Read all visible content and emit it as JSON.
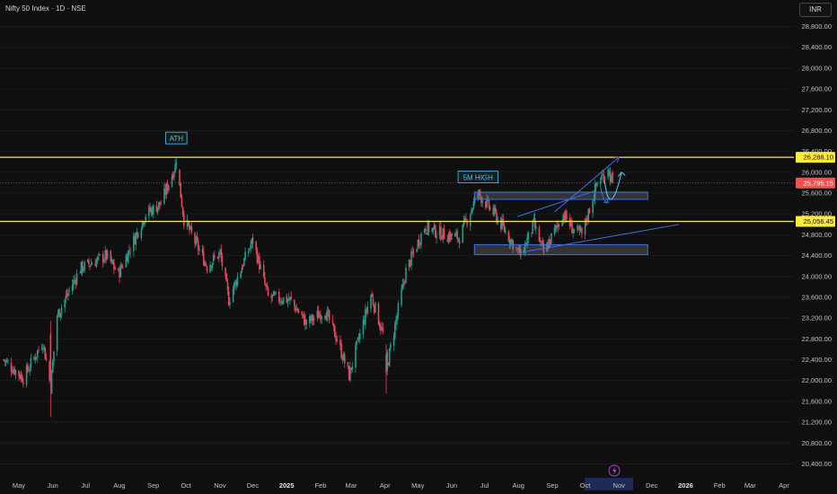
{
  "header": {
    "title": "Nifty 50 Index · 1D · NSE",
    "currency": "INR"
  },
  "colors": {
    "background": "#0f0f0f",
    "up_candle": "#1f9e8c",
    "down_candle": "#e8455a",
    "key_level": "#ffeb3b",
    "last_price": "#ef5350",
    "drawing": "#3f6fe0",
    "annotation_text": "#4fc3f7"
  },
  "chart_data": {
    "type": "candlestick",
    "title": "Nifty 50 Index · 1D · NSE",
    "y_axis": {
      "ticks": [
        20400,
        20800,
        21200,
        21600,
        22000,
        22400,
        22800,
        23200,
        23600,
        24000,
        24400,
        24800,
        25200,
        25600,
        26000,
        26400,
        26800,
        27200,
        27600,
        28000,
        28400,
        28800
      ],
      "tick_labels": [
        "20,400.00",
        "20,800.00",
        "21,200.00",
        "21,600.00",
        "22,000.00",
        "22,400.00",
        "22,800.00",
        "23,200.00",
        "23,600.00",
        "24,000.00",
        "24,400.00",
        "24,800.00",
        "25,200.00",
        "25,600.00",
        "26,000.00",
        "26,400.00",
        "26,800.00",
        "27,200.00",
        "27,600.00",
        "28,000.00",
        "28,400.00",
        "28,800.00"
      ],
      "range": [
        20200,
        29200
      ],
      "side": "right"
    },
    "x_axis": {
      "ticks": [
        "May",
        "Jun",
        "Jul",
        "Aug",
        "Sep",
        "Oct",
        "Nov",
        "Dec",
        "2025",
        "Feb",
        "Mar",
        "Apr",
        "May",
        "Jun",
        "Jul",
        "Aug",
        "Sep",
        "Oct",
        "Nov",
        "Dec",
        "2026",
        "Feb",
        "Mar",
        "Apr"
      ],
      "bold_ticks": [
        "2025",
        "2026"
      ],
      "range": [
        "2024-04-22",
        "2026-04-30"
      ]
    },
    "price_labels": [
      {
        "text": "26,288.10",
        "value": 26288.1,
        "role": "key level (ATH)"
      },
      {
        "text": "25,795.15",
        "value": 25795.15,
        "role": "last price"
      },
      {
        "text": "25,056.45",
        "value": 25056.45,
        "role": "key level"
      }
    ],
    "horizontal_lines": [
      {
        "value": 26288.1,
        "color": "#ffeb3b"
      },
      {
        "value": 25056.45,
        "color": "#ffeb3b"
      },
      {
        "value": 25795.15,
        "color": "#ef5350",
        "style": "dotted"
      }
    ],
    "annotations": [
      {
        "text": "ATH",
        "date": "2024-09-27",
        "value": 26650
      },
      {
        "text": "5M HIGH",
        "date": "2025-06-30",
        "value": 25900
      }
    ],
    "zones": [
      {
        "from_date": "2025-06-30",
        "to_date": "2025-11-29",
        "low": 25480,
        "high": 25620
      },
      {
        "from_date": "2025-06-30",
        "to_date": "2025-11-29",
        "low": 24420,
        "high": 24610
      }
    ],
    "trendlines": [
      {
        "from": [
          "2025-08-05",
          25150
        ],
        "to": [
          "2025-10-16",
          25650
        ]
      },
      {
        "from": [
          "2025-09-08",
          25240
        ],
        "to": [
          "2025-11-06",
          26290
        ]
      },
      {
        "from": [
          "2025-08-05",
          24450
        ],
        "to": [
          "2025-12-31",
          25000
        ]
      }
    ],
    "arrows": [
      {
        "from": [
          "2025-10-27",
          25700
        ],
        "to": [
          "2025-11-10",
          26350
        ],
        "shape": "curved-up"
      },
      {
        "from": [
          "2025-10-20",
          25760
        ],
        "to": [
          "2025-10-27",
          25480
        ],
        "shape": "curved-down"
      }
    ],
    "candles": {
      "start_date": "2024-04-22",
      "series": "daily close (approx., read from chart)",
      "key_points": [
        [
          "2024-04-22",
          22400
        ],
        [
          "2024-05-10",
          22050
        ],
        [
          "2024-05-28",
          22750
        ],
        [
          "2024-06-04",
          21880
        ],
        [
          "2024-06-10",
          23250
        ],
        [
          "2024-07-01",
          24150
        ],
        [
          "2024-07-25",
          24400
        ],
        [
          "2024-08-05",
          24050
        ],
        [
          "2024-08-30",
          25200
        ],
        [
          "2024-09-13",
          25400
        ],
        [
          "2024-09-27",
          26180
        ],
        [
          "2024-10-04",
          25100
        ],
        [
          "2024-10-25",
          24200
        ],
        [
          "2024-11-06",
          24450
        ],
        [
          "2024-11-14",
          23550
        ],
        [
          "2024-11-27",
          24250
        ],
        [
          "2024-12-06",
          24700
        ],
        [
          "2024-12-20",
          23600
        ],
        [
          "2025-01-09",
          23550
        ],
        [
          "2025-01-24",
          23100
        ],
        [
          "2025-02-10",
          23350
        ],
        [
          "2025-02-21",
          22800
        ],
        [
          "2025-03-04",
          22100
        ],
        [
          "2025-03-24",
          23650
        ],
        [
          "2025-04-04",
          22900
        ],
        [
          "2025-04-07",
          22200
        ],
        [
          "2025-04-25",
          24100
        ],
        [
          "2025-05-12",
          24950
        ],
        [
          "2025-05-30",
          24800
        ],
        [
          "2025-06-13",
          24750
        ],
        [
          "2025-06-30",
          25600
        ],
        [
          "2025-07-15",
          25200
        ],
        [
          "2025-08-08",
          24400
        ],
        [
          "2025-08-20",
          25000
        ],
        [
          "2025-08-29",
          24450
        ],
        [
          "2025-09-16",
          25200
        ],
        [
          "2025-09-25",
          24900
        ],
        [
          "2025-10-03",
          24800
        ],
        [
          "2025-10-17",
          25800
        ],
        [
          "2025-10-27",
          26050
        ],
        [
          "2025-10-31",
          25795
        ]
      ]
    }
  }
}
